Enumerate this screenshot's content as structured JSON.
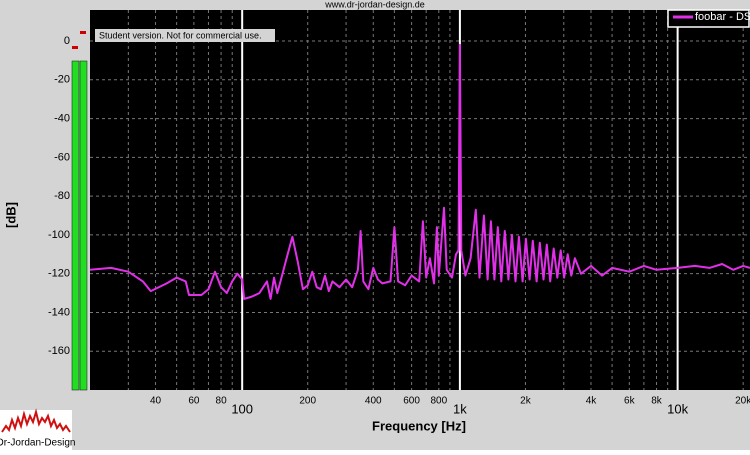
{
  "header": {
    "url": "www.dr-jordan-design.de",
    "notice": "Student version. Not for commercial use.",
    "logo": "Dr-Jordan-Design"
  },
  "chart_data": {
    "type": "line",
    "log_x": true,
    "grid": true,
    "xlabel": "Frequency [Hz]",
    "ylabel": "[dB]",
    "xlim": [
      20,
      21500
    ],
    "ylim": [
      -180,
      16
    ],
    "xticks": [
      40,
      60,
      80,
      100,
      200,
      400,
      600,
      800,
      {
        "value": 1000,
        "label": "1k"
      },
      {
        "value": 2000,
        "label": "2k"
      },
      {
        "value": 4000,
        "label": "4k"
      },
      {
        "value": 6000,
        "label": "6k"
      },
      {
        "value": 8000,
        "label": "8k"
      },
      {
        "value": 10000,
        "label": "10k"
      },
      {
        "value": 20000,
        "label": "20k"
      }
    ],
    "x_minor_grid": [
      30,
      50,
      70,
      90,
      300,
      500,
      700,
      900,
      3000,
      5000,
      7000,
      9000
    ],
    "yticks": [
      0,
      -20,
      -40,
      -60,
      -80,
      -100,
      -120,
      -140,
      -160
    ],
    "legend": "top-right",
    "series": [
      {
        "name": "foobar - DS",
        "color": "#e030e8",
        "x": [
          20,
          25,
          30,
          35,
          38,
          45,
          50,
          55,
          57,
          65,
          70,
          75,
          80,
          85,
          90,
          95,
          100,
          102,
          110,
          120,
          130,
          135,
          140,
          145,
          150,
          160,
          170,
          180,
          190,
          200,
          210,
          220,
          230,
          240,
          250,
          260,
          280,
          300,
          320,
          340,
          350,
          360,
          380,
          400,
          420,
          440,
          480,
          500,
          520,
          560,
          600,
          650,
          676,
          700,
          728,
          760,
          784,
          800,
          845,
          870,
          920,
          960,
          985,
          1000,
          1015,
          1060,
          1120,
          1183,
          1230,
          1289,
          1340,
          1388,
          1440,
          1493,
          1550,
          1608,
          1670,
          1733,
          1800,
          1866,
          1940,
          2009,
          2090,
          2163,
          2250,
          2329,
          2420,
          2506,
          2600,
          2698,
          2800,
          2904,
          3010,
          3126,
          3250,
          3373,
          3600,
          4000,
          4500,
          5000,
          6000,
          7000,
          8000,
          10000,
          12000,
          14000,
          16000,
          18000,
          20000,
          21500
        ],
        "values": [
          -118,
          -117,
          -119,
          -124,
          -129,
          -125,
          -122,
          -124,
          -131,
          -131,
          -128,
          -119,
          -127,
          -130,
          -124,
          -120,
          -123,
          -133,
          -132,
          -130,
          -124,
          -133,
          -122,
          -130,
          -124,
          -112,
          -101,
          -114,
          -128,
          -126,
          -119,
          -127,
          -128,
          -121,
          -129,
          -124,
          -127,
          -123,
          -127,
          -118,
          -98,
          -124,
          -128,
          -117,
          -123,
          -125,
          -124,
          -96,
          -124,
          -126,
          -121,
          -124,
          -93,
          -122,
          -112,
          -125,
          -96,
          -121,
          -86,
          -118,
          -122,
          -110,
          -108,
          -2,
          -108,
          -121,
          -112,
          -87,
          -122,
          -90,
          -123,
          -93,
          -123,
          -96,
          -124,
          -98,
          -123,
          -100,
          -124,
          -101,
          -124,
          -102,
          -123,
          -103,
          -124,
          -104,
          -123,
          -105,
          -124,
          -107,
          -122,
          -108,
          -122,
          -110,
          -121,
          -112,
          -120,
          -116,
          -121,
          -117,
          -119,
          -116,
          -118,
          -117,
          -116,
          -117,
          -115,
          -118,
          -116,
          -117
        ]
      }
    ]
  }
}
